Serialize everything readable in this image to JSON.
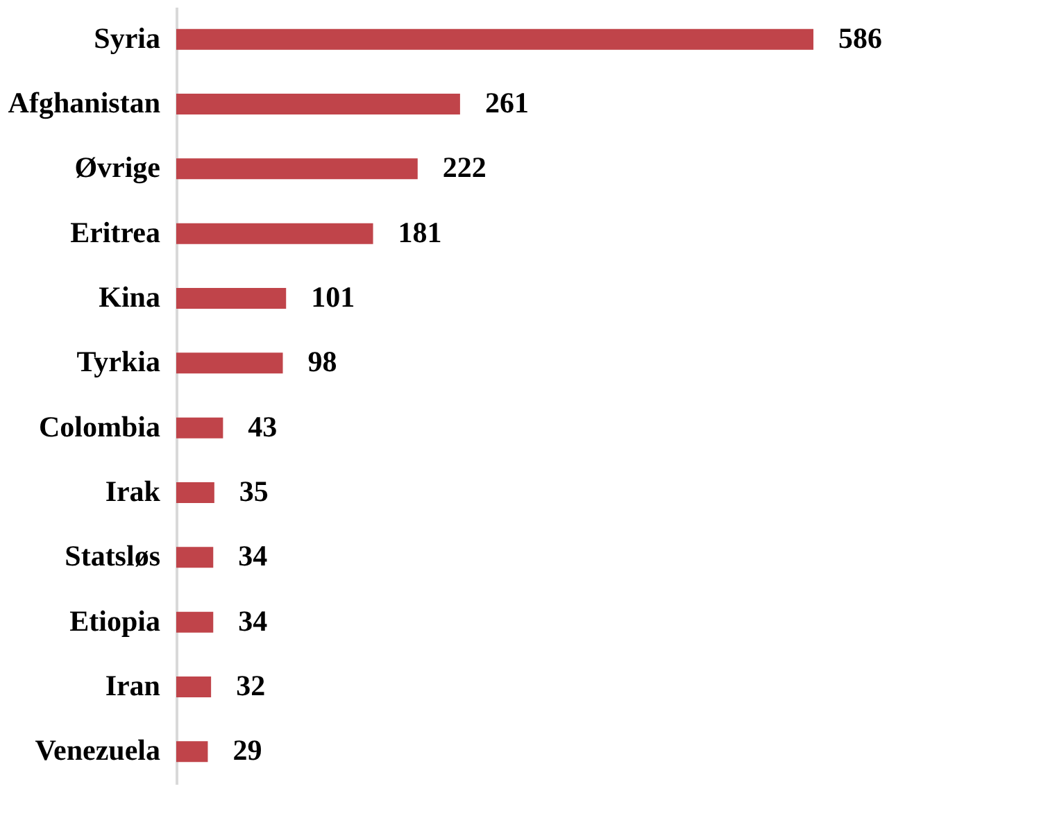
{
  "chart_data": {
    "type": "bar",
    "orientation": "horizontal",
    "categories": [
      "Syria",
      "Afghanistan",
      "Øvrige",
      "Eritrea",
      "Kina",
      "Tyrkia",
      "Colombia",
      "Irak",
      "Statsløs",
      "Etiopia",
      "Iran",
      "Venezuela"
    ],
    "values": [
      586,
      261,
      222,
      181,
      101,
      98,
      43,
      35,
      34,
      34,
      32,
      29
    ],
    "color": "#c0444a",
    "data_labels": true,
    "grid": false
  }
}
